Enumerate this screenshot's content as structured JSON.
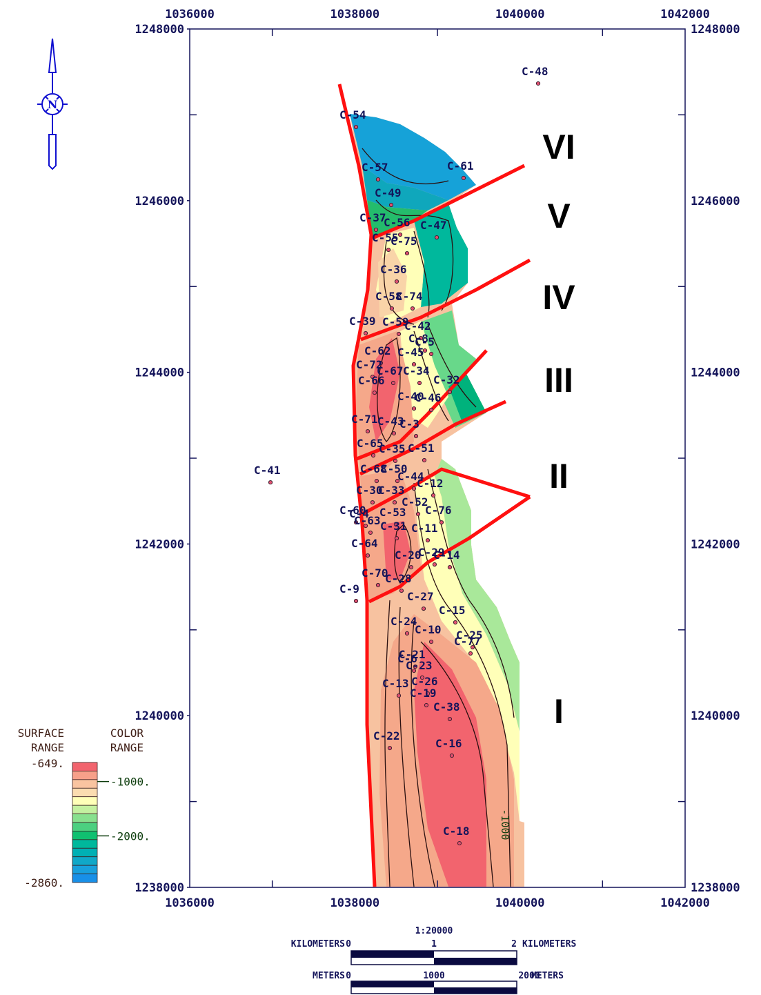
{
  "map": {
    "xlim": [
      1036000,
      1042000
    ],
    "ylim": [
      1238000,
      1248000
    ],
    "xticks": [
      1036000,
      1038000,
      1040000,
      1042000
    ],
    "yticks": [
      1238000,
      1240000,
      1242000,
      1244000,
      1246000,
      1248000
    ],
    "xminor": [
      1037000,
      1039000,
      1041000
    ],
    "yminor": [
      1239000,
      1241000,
      1243000,
      1245000,
      1247000
    ],
    "wells": [
      {
        "name": "C-48",
        "x": 1040220,
        "y": 1247365
      },
      {
        "name": "C-54",
        "x": 1038014,
        "y": 1246858
      },
      {
        "name": "C-57",
        "x": 1038281,
        "y": 1246247
      },
      {
        "name": "C-61",
        "x": 1039317,
        "y": 1246264
      },
      {
        "name": "C-49",
        "x": 1038440,
        "y": 1245950
      },
      {
        "name": "C-37",
        "x": 1038256,
        "y": 1245661
      },
      {
        "name": "C-56",
        "x": 1038549,
        "y": 1245604
      },
      {
        "name": "C-47",
        "x": 1038992,
        "y": 1245572
      },
      {
        "name": "C-55",
        "x": 1038407,
        "y": 1245427
      },
      {
        "name": "C-75",
        "x": 1038632,
        "y": 1245387
      },
      {
        "name": "C-36",
        "x": 1038507,
        "y": 1245058
      },
      {
        "name": "C-58",
        "x": 1038448,
        "y": 1244744
      },
      {
        "name": "C-74",
        "x": 1038699,
        "y": 1244744
      },
      {
        "name": "C-39",
        "x": 1038131,
        "y": 1244455
      },
      {
        "name": "C-59",
        "x": 1038532,
        "y": 1244447
      },
      {
        "name": "C-42",
        "x": 1038799,
        "y": 1244398
      },
      {
        "name": "C-8",
        "x": 1038849,
        "y": 1244254
      },
      {
        "name": "C-5",
        "x": 1038925,
        "y": 1244214
      },
      {
        "name": "C-62",
        "x": 1038315,
        "y": 1244109
      },
      {
        "name": "C-45",
        "x": 1038716,
        "y": 1244093
      },
      {
        "name": "C-72",
        "x": 1038214,
        "y": 1243948
      },
      {
        "name": "C-67",
        "x": 1038465,
        "y": 1243876
      },
      {
        "name": "C-34",
        "x": 1038783,
        "y": 1243876
      },
      {
        "name": "C-32",
        "x": 1039150,
        "y": 1243771
      },
      {
        "name": "C-66",
        "x": 1038239,
        "y": 1243763
      },
      {
        "name": "C-40",
        "x": 1038716,
        "y": 1243578
      },
      {
        "name": "C-46",
        "x": 1038925,
        "y": 1243562
      },
      {
        "name": "C-71",
        "x": 1038156,
        "y": 1243313
      },
      {
        "name": "C-43",
        "x": 1038473,
        "y": 1243289
      },
      {
        "name": "C-3",
        "x": 1038741,
        "y": 1243257
      },
      {
        "name": "C-65",
        "x": 1038223,
        "y": 1243032
      },
      {
        "name": "C-35",
        "x": 1038490,
        "y": 1242968
      },
      {
        "name": "C-51",
        "x": 1038841,
        "y": 1242976
      },
      {
        "name": "C-68",
        "x": 1038264,
        "y": 1242734
      },
      {
        "name": "C-50",
        "x": 1038515,
        "y": 1242734
      },
      {
        "name": "C-44",
        "x": 1038716,
        "y": 1242646
      },
      {
        "name": "C-12",
        "x": 1038950,
        "y": 1242566
      },
      {
        "name": "C-30",
        "x": 1038214,
        "y": 1242485
      },
      {
        "name": "C-33",
        "x": 1038482,
        "y": 1242485
      },
      {
        "name": "C-52",
        "x": 1038766,
        "y": 1242349
      },
      {
        "name": "C-76",
        "x": 1039050,
        "y": 1242252
      },
      {
        "name": "C-60",
        "x": 1038014,
        "y": 1242252
      },
      {
        "name": "C-4",
        "x": 1038131,
        "y": 1242212
      },
      {
        "name": "C-53",
        "x": 1038498,
        "y": 1242228
      },
      {
        "name": "C-63",
        "x": 1038189,
        "y": 1242132
      },
      {
        "name": "C-31",
        "x": 1038507,
        "y": 1242067
      },
      {
        "name": "C-11",
        "x": 1038883,
        "y": 1242043
      },
      {
        "name": "C-64",
        "x": 1038156,
        "y": 1241866
      },
      {
        "name": "C-20",
        "x": 1038682,
        "y": 1241729
      },
      {
        "name": "C-29",
        "x": 1038966,
        "y": 1241762
      },
      {
        "name": "C-14",
        "x": 1039150,
        "y": 1241729
      },
      {
        "name": "C-70",
        "x": 1038281,
        "y": 1241521
      },
      {
        "name": "C-9",
        "x": 1038014,
        "y": 1241336
      },
      {
        "name": "C-28",
        "x": 1038565,
        "y": 1241456
      },
      {
        "name": "C-27",
        "x": 1038833,
        "y": 1241247
      },
      {
        "name": "C-15",
        "x": 1039217,
        "y": 1241087
      },
      {
        "name": "C-24",
        "x": 1038632,
        "y": 1240959
      },
      {
        "name": "C-10",
        "x": 1038925,
        "y": 1240861
      },
      {
        "name": "C-25",
        "x": 1039426,
        "y": 1240797
      },
      {
        "name": "C-77",
        "x": 1039401,
        "y": 1240725
      },
      {
        "name": "C-21",
        "x": 1038732,
        "y": 1240572
      },
      {
        "name": "C-6",
        "x": 1038716,
        "y": 1240524
      },
      {
        "name": "C-23",
        "x": 1038816,
        "y": 1240444
      },
      {
        "name": "C-13",
        "x": 1038532,
        "y": 1240234
      },
      {
        "name": "C-26",
        "x": 1038883,
        "y": 1240258
      },
      {
        "name": "C-19",
        "x": 1038866,
        "y": 1240122
      },
      {
        "name": "C-38",
        "x": 1039150,
        "y": 1239961
      },
      {
        "name": "C-22",
        "x": 1038423,
        "y": 1239623
      },
      {
        "name": "C-16",
        "x": 1039175,
        "y": 1239535
      },
      {
        "name": "C-18",
        "x": 1039267,
        "y": 1238514
      },
      {
        "name": "C-41",
        "x": 1036978,
        "y": 1242718
      }
    ],
    "zones": [
      "VI",
      "V",
      "IV",
      "III",
      "II",
      "I"
    ],
    "contour_label": -1000,
    "north": "N"
  },
  "legend": {
    "surface_label": [
      "SURFACE",
      "RANGE"
    ],
    "color_label": [
      "COLOR",
      "RANGE"
    ],
    "range": [
      {
        "value": -649,
        "label": "-649."
      },
      {
        "value": -2860,
        "label": "-2860."
      }
    ],
    "ticks": [
      {
        "value": -1000,
        "label": "-1000."
      },
      {
        "value": -2000,
        "label": "-2000."
      }
    ]
  },
  "scale": {
    "ratio": "1:20000",
    "km_unit": "KILOMETERS",
    "km_ticks": [
      0,
      1,
      2
    ],
    "m_unit": "METERS",
    "m_ticks": [
      0,
      1000,
      2000
    ]
  }
}
